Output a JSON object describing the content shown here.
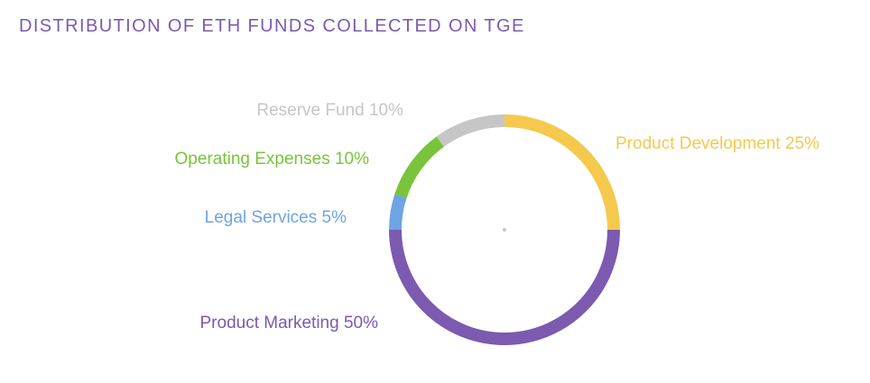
{
  "page": {
    "title": "DISTRIBUTION OF ETH FUNDS COLLECTED ON TGE"
  },
  "chart_data": {
    "type": "pie",
    "style": "donut-ring",
    "title": "DISTRIBUTION OF ETH FUNDS COLLECTED ON TGE",
    "slices": [
      {
        "label": "Product Development 25%",
        "name": "Product Development",
        "value": 25,
        "color": "#f5c94e"
      },
      {
        "label": "Product Marketing 50%",
        "name": "Product Marketing",
        "value": 50,
        "color": "#7b5ab0"
      },
      {
        "label": "Legal Services 5%",
        "name": "Legal Services",
        "value": 5,
        "color": "#6ea4e3"
      },
      {
        "label": "Operating Expenses 10%",
        "name": "Operating Expenses",
        "value": 10,
        "color": "#79c43a"
      },
      {
        "label": "Reserve Fund 10%",
        "name": "Reserve Fund",
        "value": 10,
        "color": "#c6c6c6"
      }
    ],
    "start_angle": "12 o'clock",
    "direction": "clockwise",
    "center_marker_color": "#c6c6c6"
  }
}
